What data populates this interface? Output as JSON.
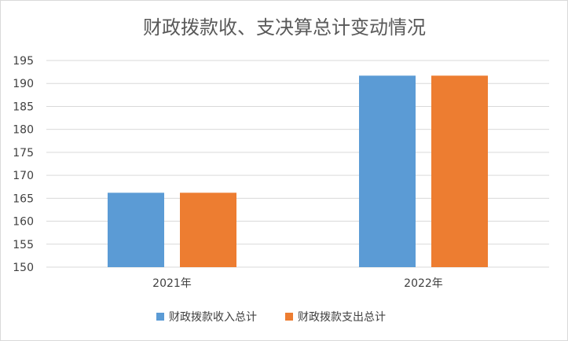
{
  "chart_data": {
    "type": "bar",
    "title": "财政拨款收、支决算总计变动情况",
    "xlabel": "",
    "ylabel": "",
    "categories": [
      "2021年",
      "2022年"
    ],
    "series": [
      {
        "name": "财政拨款收入总计",
        "color": "#5B9BD5",
        "values": [
          166.2,
          191.7
        ]
      },
      {
        "name": "财政拨款支出总计",
        "color": "#ED7D31",
        "values": [
          166.2,
          191.7
        ]
      }
    ],
    "ylim": [
      150,
      195
    ],
    "yticks": [
      150,
      155,
      160,
      165,
      170,
      175,
      180,
      185,
      190,
      195
    ],
    "grid": true,
    "legend_position": "bottom"
  }
}
